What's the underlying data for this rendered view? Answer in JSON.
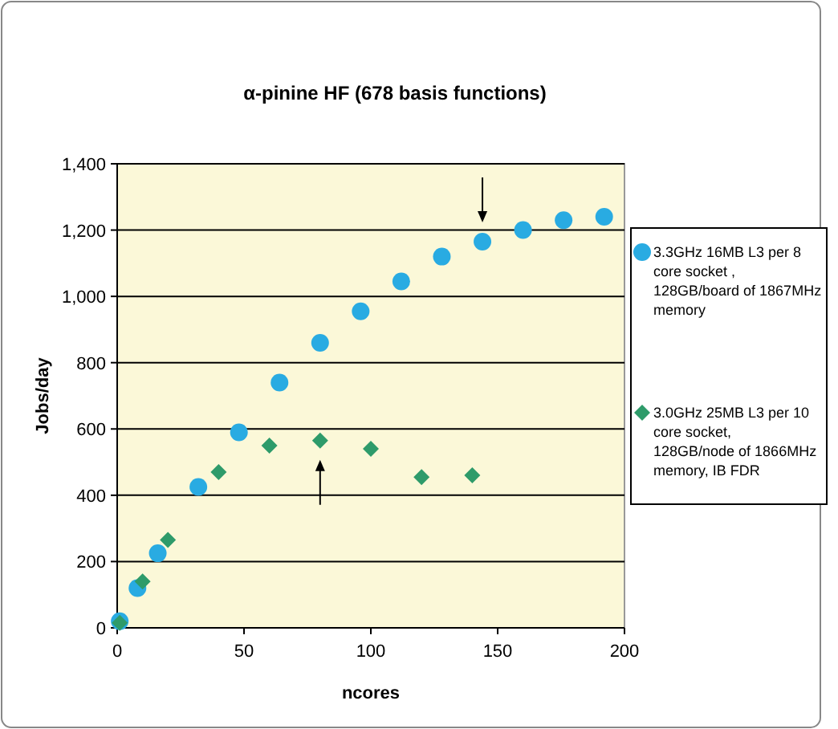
{
  "chart_data": {
    "type": "scatter",
    "title": "α-pinine HF (678 basis functions)",
    "xlabel": "ncores",
    "ylabel": "Jobs/day",
    "xlim": [
      0,
      200
    ],
    "xticks": [
      0,
      50,
      100,
      150,
      200
    ],
    "ylim": [
      0,
      1400
    ],
    "yticks": [
      {
        "value": 0,
        "label": "0"
      },
      {
        "value": 200,
        "label": "200"
      },
      {
        "value": 400,
        "label": "400"
      },
      {
        "value": 600,
        "label": "600"
      },
      {
        "value": 800,
        "label": "800"
      },
      {
        "value": 1000,
        "label": "1,000"
      },
      {
        "value": 1200,
        "label": "1,200"
      },
      {
        "value": 1400,
        "label": "1,400"
      }
    ],
    "grid": "y",
    "legend": "right",
    "series": [
      {
        "name": "3.3GHz 16MB L3 per 8 core socket , 128GB/board of 1867MHz memory",
        "color": "#29abe2",
        "marker": "circle",
        "x": [
          1,
          8,
          16,
          32,
          48,
          64,
          80,
          96,
          112,
          128,
          144,
          160,
          176,
          192
        ],
        "values": [
          20,
          120,
          225,
          425,
          590,
          740,
          860,
          955,
          1045,
          1120,
          1165,
          1200,
          1230,
          1240
        ]
      },
      {
        "name": "3.0GHz 25MB L3 per 10 core socket, 128GB/node of 1866MHz memory, IB FDR",
        "color": "#2e9b6a",
        "marker": "diamond",
        "x": [
          1,
          10,
          20,
          40,
          60,
          80,
          100,
          120,
          140
        ],
        "values": [
          15,
          140,
          265,
          470,
          550,
          565,
          540,
          455,
          460
        ]
      }
    ]
  }
}
